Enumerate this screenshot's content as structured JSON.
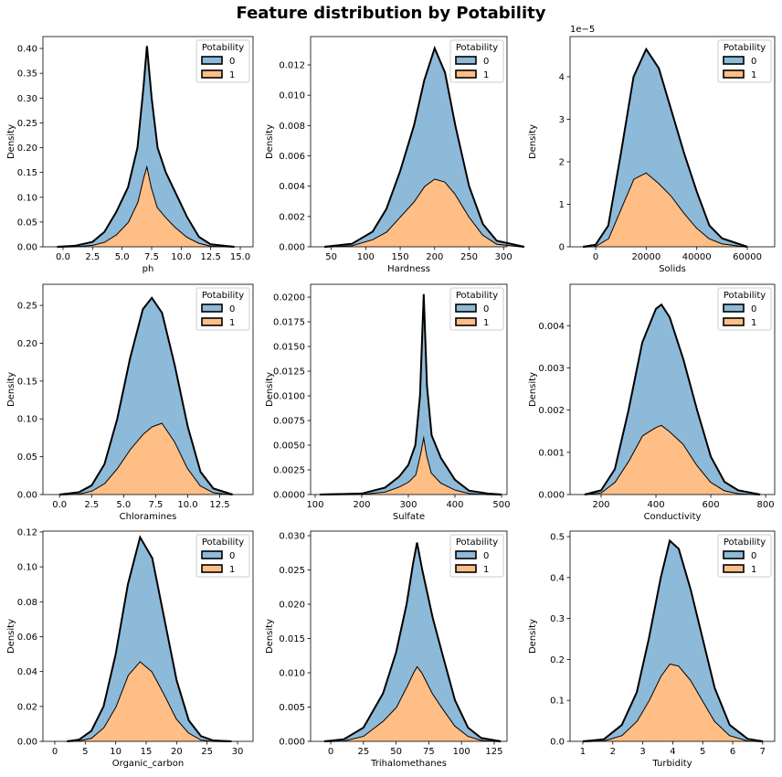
{
  "title": "Feature distribution by Potability",
  "chart_data": [
    {
      "type": "area",
      "stacked": true,
      "xlabel": "ph",
      "ylabel": "Density",
      "legend_title": "Potability",
      "legend": "upper right",
      "x": [
        -0.5,
        1,
        2.5,
        3.5,
        4.5,
        5.5,
        6.3,
        6.8,
        7.1,
        7.5,
        8,
        8.7,
        9.5,
        10.5,
        11.5,
        12.5,
        14.5
      ],
      "series": [
        {
          "name": "0",
          "color": "#8ebad9",
          "values": [
            0,
            0.001,
            0.006,
            0.02,
            0.045,
            0.07,
            0.11,
            0.18,
            0.24,
            0.18,
            0.12,
            0.09,
            0.07,
            0.04,
            0.012,
            0.003,
            0
          ]
        },
        {
          "name": "1",
          "color": "#ffbe86",
          "values": [
            0,
            0.001,
            0.004,
            0.01,
            0.025,
            0.05,
            0.09,
            0.14,
            0.165,
            0.12,
            0.08,
            0.06,
            0.04,
            0.02,
            0.008,
            0.002,
            0
          ]
        }
      ],
      "xlim": [
        -1.7,
        16.08
      ],
      "ylim": [
        0,
        0.424
      ],
      "xticks": [
        {
          "value": 0,
          "label": "0.0"
        },
        2.5,
        {
          "value": 5,
          "label": "5.0"
        },
        7.5,
        {
          "value": 10,
          "label": "10.0"
        },
        12.5,
        {
          "value": 15,
          "label": "15.0"
        }
      ],
      "yticks": [
        {
          "value": 0,
          "label": "0.00"
        },
        0.05,
        {
          "value": 0.1,
          "label": "0.10"
        },
        0.15,
        {
          "value": 0.2,
          "label": "0.20"
        },
        0.25,
        {
          "value": 0.3,
          "label": "0.30"
        },
        0.35,
        {
          "value": 0.4,
          "label": "0.40"
        }
      ]
    },
    {
      "type": "area",
      "stacked": true,
      "xlabel": "Hardness",
      "ylabel": "Density",
      "legend_title": "Potability",
      "legend": "upper right",
      "x": [
        40,
        80,
        110,
        130,
        150,
        170,
        185,
        200,
        215,
        230,
        250,
        270,
        290,
        330
      ],
      "series": [
        {
          "name": "0",
          "color": "#8ebad9",
          "values": [
            0,
            0.0001,
            0.0005,
            0.0015,
            0.003,
            0.005,
            0.007,
            0.0086,
            0.0072,
            0.0045,
            0.002,
            0.0007,
            0.0002,
            0
          ]
        },
        {
          "name": "1",
          "color": "#ffbe86",
          "values": [
            0,
            0.0001,
            0.0005,
            0.001,
            0.002,
            0.003,
            0.004,
            0.0045,
            0.0043,
            0.0035,
            0.002,
            0.0008,
            0.0002,
            0
          ]
        }
      ],
      "xlim": [
        20,
        305
      ],
      "ylim": [
        0,
        0.01387
      ],
      "xticks": [
        50,
        100,
        150,
        200,
        250,
        300
      ],
      "yticks": [
        {
          "value": 0,
          "label": "0.000"
        },
        {
          "value": 0.002,
          "label": "0.002"
        },
        {
          "value": 0.004,
          "label": "0.004"
        },
        {
          "value": 0.006,
          "label": "0.006"
        },
        {
          "value": 0.008,
          "label": "0.008"
        },
        {
          "value": 0.01,
          "label": "0.010"
        },
        {
          "value": 0.012,
          "label": "0.012"
        }
      ]
    },
    {
      "type": "area",
      "stacked": true,
      "xlabel": "Solids",
      "ylabel": "Density",
      "legend_title": "Potability",
      "legend": "upper right",
      "y_offset_label": "1e−5",
      "x": [
        -5000,
        0,
        5000,
        10000,
        15000,
        20000,
        25000,
        30000,
        35000,
        40000,
        45000,
        50000,
        60000
      ],
      "series": [
        {
          "name": "0",
          "color": "#8ebad9",
          "values": [
            0,
            0.03,
            0.3,
            1.3,
            2.4,
            2.9,
            2.7,
            2.0,
            1.4,
            0.85,
            0.3,
            0.12,
            0
          ]
        },
        {
          "name": "1",
          "color": "#ffbe86",
          "values": [
            0,
            0.02,
            0.2,
            0.9,
            1.6,
            1.75,
            1.5,
            1.2,
            0.8,
            0.45,
            0.2,
            0.08,
            0
          ]
        }
      ],
      "xlim": [
        -10120,
        70830
      ],
      "ylim": [
        0,
        4.946
      ],
      "xticks": [
        0,
        20000,
        40000,
        60000
      ],
      "yticks": [
        0,
        1,
        2,
        3,
        4
      ]
    },
    {
      "type": "area",
      "stacked": true,
      "xlabel": "Chloramines",
      "ylabel": "Density",
      "legend_title": "Potability",
      "legend": "upper right",
      "x": [
        0,
        1.5,
        2.5,
        3.5,
        4.5,
        5.5,
        6.5,
        7.2,
        8,
        9,
        10,
        11,
        12,
        13.5
      ],
      "series": [
        {
          "name": "0",
          "color": "#8ebad9",
          "values": [
            0,
            0.002,
            0.007,
            0.025,
            0.065,
            0.12,
            0.165,
            0.17,
            0.145,
            0.1,
            0.055,
            0.018,
            0.005,
            0
          ]
        },
        {
          "name": "1",
          "color": "#ffbe86",
          "values": [
            0,
            0.001,
            0.005,
            0.015,
            0.035,
            0.06,
            0.08,
            0.09,
            0.095,
            0.07,
            0.035,
            0.012,
            0.003,
            0
          ]
        }
      ],
      "xlim": [
        -1.3,
        15.1
      ],
      "ylim": [
        0,
        0.2779
      ],
      "xticks": [
        {
          "value": 0,
          "label": "0.0"
        },
        2.5,
        {
          "value": 5,
          "label": "5.0"
        },
        7.5,
        {
          "value": 10,
          "label": "10.0"
        },
        12.5
      ],
      "yticks": [
        {
          "value": 0,
          "label": "0.00"
        },
        0.05,
        {
          "value": 0.1,
          "label": "0.10"
        },
        0.15,
        {
          "value": 0.2,
          "label": "0.20"
        },
        0.25
      ]
    },
    {
      "type": "area",
      "stacked": true,
      "xlabel": "Sulfate",
      "ylabel": "Density",
      "legend_title": "Potability",
      "legend": "upper right",
      "x": [
        110,
        200,
        250,
        280,
        300,
        315,
        325,
        333,
        340,
        350,
        370,
        400,
        430,
        470,
        500
      ],
      "series": [
        {
          "name": "0",
          "color": "#8ebad9",
          "values": [
            0,
            5e-05,
            0.0004,
            0.001,
            0.0017,
            0.003,
            0.006,
            0.0143,
            0.007,
            0.0038,
            0.0025,
            0.001,
            0.00025,
            7e-05,
            0
          ]
        },
        {
          "name": "1",
          "color": "#ffbe86",
          "values": [
            0,
            5e-05,
            0.0003,
            0.0008,
            0.0013,
            0.002,
            0.004,
            0.006,
            0.004,
            0.0022,
            0.0012,
            0.0005,
            0.00015,
            3e-05,
            0
          ]
        }
      ],
      "xlim": [
        90.2,
        511.8
      ],
      "ylim": [
        0,
        0.0213
      ],
      "xticks": [
        100,
        200,
        300,
        400,
        500
      ],
      "yticks": [
        {
          "value": 0,
          "label": "0.0000"
        },
        {
          "value": 0.0025,
          "label": "0.0025"
        },
        {
          "value": 0.005,
          "label": "0.0050"
        },
        {
          "value": 0.0075,
          "label": "0.0075"
        },
        {
          "value": 0.01,
          "label": "0.0100"
        },
        {
          "value": 0.0125,
          "label": "0.0125"
        },
        {
          "value": 0.015,
          "label": "0.0150"
        },
        {
          "value": 0.0175,
          "label": "0.0175"
        },
        {
          "value": 0.02,
          "label": "0.0200"
        }
      ]
    },
    {
      "type": "area",
      "stacked": true,
      "xlabel": "Conductivity",
      "ylabel": "Density",
      "legend_title": "Potability",
      "legend": "upper right",
      "x": [
        140,
        200,
        250,
        300,
        350,
        400,
        420,
        450,
        500,
        550,
        600,
        650,
        700,
        780
      ],
      "series": [
        {
          "name": "0",
          "color": "#8ebad9",
          "values": [
            0,
            5e-05,
            0.0003,
            0.0012,
            0.0022,
            0.0028,
            0.00285,
            0.0027,
            0.002,
            0.0013,
            0.0006,
            0.0002,
            7e-05,
            0
          ]
        },
        {
          "name": "1",
          "color": "#ffbe86",
          "values": [
            0,
            5e-05,
            0.0003,
            0.0008,
            0.0014,
            0.0016,
            0.00165,
            0.0015,
            0.0012,
            0.0007,
            0.0003,
            0.0001,
            3e-05,
            0
          ]
        }
      ],
      "xlim": [
        86.7,
        833
      ],
      "ylim": [
        0,
        0.00498
      ],
      "xticks": [
        200,
        400,
        600,
        800
      ],
      "yticks": [
        {
          "value": 0,
          "label": "0.000"
        },
        {
          "value": 0.001,
          "label": "0.001"
        },
        {
          "value": 0.002,
          "label": "0.002"
        },
        {
          "value": 0.003,
          "label": "0.003"
        },
        {
          "value": 0.004,
          "label": "0.004"
        }
      ]
    },
    {
      "type": "area",
      "stacked": true,
      "xlabel": "Organic_carbon",
      "ylabel": "Density",
      "legend_title": "Potability",
      "legend": "upper right",
      "x": [
        2,
        4,
        6,
        8,
        10,
        12,
        14,
        16,
        18,
        20,
        22,
        24,
        26,
        29
      ],
      "series": [
        {
          "name": "0",
          "color": "#8ebad9",
          "values": [
            0,
            0.0005,
            0.004,
            0.012,
            0.03,
            0.052,
            0.071,
            0.065,
            0.043,
            0.022,
            0.007,
            0.002,
            0.0003,
            0
          ]
        },
        {
          "name": "1",
          "color": "#ffbe86",
          "values": [
            0,
            0.0005,
            0.002,
            0.008,
            0.02,
            0.038,
            0.046,
            0.04,
            0.027,
            0.013,
            0.005,
            0.001,
            0.0002,
            0
          ]
        }
      ],
      "xlim": [
        -1.95,
        32.55
      ],
      "ylim": [
        0,
        0.1205
      ],
      "xticks": [
        0,
        5,
        10,
        15,
        20,
        25,
        30
      ],
      "yticks": [
        {
          "value": 0,
          "label": "0.00"
        },
        {
          "value": 0.02,
          "label": "0.02"
        },
        {
          "value": 0.04,
          "label": "0.04"
        },
        {
          "value": 0.06,
          "label": "0.06"
        },
        {
          "value": 0.08,
          "label": "0.08"
        },
        {
          "value": 0.1,
          "label": "0.10"
        },
        {
          "value": 0.12,
          "label": "0.12"
        }
      ]
    },
    {
      "type": "area",
      "stacked": true,
      "xlabel": "Trihalomethanes",
      "ylabel": "Density",
      "legend_title": "Potability",
      "legend": "upper right",
      "x": [
        -5,
        10,
        25,
        40,
        50,
        58,
        63,
        66,
        70,
        78,
        85,
        95,
        105,
        115,
        130
      ],
      "series": [
        {
          "name": "0",
          "color": "#8ebad9",
          "values": [
            0,
            0.0002,
            0.0012,
            0.004,
            0.008,
            0.012,
            0.016,
            0.018,
            0.015,
            0.011,
            0.008,
            0.0037,
            0.0012,
            0.0003,
            0
          ]
        },
        {
          "name": "1",
          "color": "#ffbe86",
          "values": [
            0,
            0.0001,
            0.0008,
            0.003,
            0.005,
            0.008,
            0.01,
            0.011,
            0.01,
            0.007,
            0.005,
            0.0023,
            0.0008,
            0.0002,
            0
          ]
        }
      ],
      "xlim": [
        -15.4,
        134.8
      ],
      "ylim": [
        0,
        0.03067
      ],
      "xticks": [
        0,
        25,
        50,
        75,
        100,
        125
      ],
      "yticks": [
        {
          "value": 0,
          "label": "0.000"
        },
        {
          "value": 0.005,
          "label": "0.005"
        },
        {
          "value": 0.01,
          "label": "0.010"
        },
        {
          "value": 0.015,
          "label": "0.015"
        },
        {
          "value": 0.02,
          "label": "0.020"
        },
        {
          "value": 0.025,
          "label": "0.025"
        },
        {
          "value": 0.03,
          "label": "0.030"
        }
      ]
    },
    {
      "type": "area",
      "stacked": true,
      "xlabel": "Turbidity",
      "ylabel": "Density",
      "legend_title": "Potability",
      "legend": "upper right",
      "x": [
        1,
        1.7,
        2.3,
        2.8,
        3.2,
        3.6,
        3.9,
        4.2,
        4.6,
        5,
        5.4,
        5.9,
        6.5,
        7
      ],
      "series": [
        {
          "name": "0",
          "color": "#8ebad9",
          "values": [
            0,
            0.003,
            0.025,
            0.07,
            0.15,
            0.24,
            0.3,
            0.285,
            0.22,
            0.15,
            0.08,
            0.025,
            0.004,
            0
          ]
        },
        {
          "name": "1",
          "color": "#ffbe86",
          "values": [
            0,
            0.002,
            0.015,
            0.05,
            0.1,
            0.16,
            0.19,
            0.185,
            0.15,
            0.1,
            0.05,
            0.015,
            0.002,
            0
          ]
        }
      ],
      "xlim": [
        0.574,
        7.4
      ],
      "ylim": [
        0,
        0.5134
      ],
      "xticks": [
        1,
        2,
        3,
        4,
        5,
        6,
        7
      ],
      "yticks": [
        {
          "value": 0,
          "label": "0.0"
        },
        0.1,
        0.2,
        0.3,
        0.4,
        0.5
      ]
    }
  ]
}
